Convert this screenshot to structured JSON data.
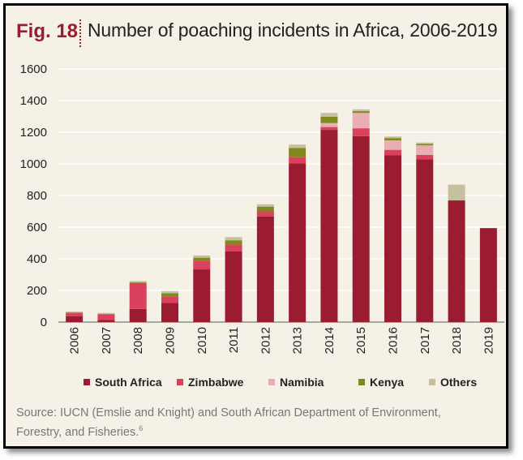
{
  "figure_label": "Fig. 18",
  "title": "Number of poaching incidents in Africa, 2006-2019",
  "source_text": "Source: IUCN (Emslie and Knight) and South African Department of Environment, Forestry, and Fisheries.",
  "source_footnote": "6",
  "colors": {
    "background": "#f6f1e7",
    "accent": "#9b1b30",
    "South Africa": "#9b1b30",
    "Zimbabwe": "#d9415c",
    "Namibia": "#e8aeb3",
    "Kenya": "#7f8a1e",
    "Others": "#c6c0a0"
  },
  "chart_data": {
    "type": "bar",
    "stacked": true,
    "title": "Number of poaching incidents in Africa, 2006-2019",
    "categories": [
      "2006",
      "2007",
      "2008",
      "2009",
      "2010",
      "2011",
      "2012",
      "2013",
      "2014",
      "2015",
      "2016",
      "2017",
      "2018",
      "2019"
    ],
    "series": [
      {
        "name": "South Africa",
        "values": [
          36,
          13,
          83,
          122,
          333,
          448,
          668,
          1004,
          1215,
          1175,
          1054,
          1028,
          769,
          594
        ]
      },
      {
        "name": "Zimbabwe",
        "values": [
          21,
          35,
          164,
          39,
          52,
          42,
          32,
          38,
          18,
          50,
          35,
          29,
          0,
          0
        ]
      },
      {
        "name": "Namibia",
        "values": [
          0,
          0,
          0,
          0,
          0,
          0,
          0,
          0,
          25,
          97,
          60,
          60,
          0,
          0
        ]
      },
      {
        "name": "Kenya",
        "values": [
          4,
          4,
          4,
          21,
          22,
          27,
          30,
          59,
          40,
          11,
          14,
          9,
          0,
          0
        ]
      },
      {
        "name": "Others",
        "values": [
          6,
          6,
          8,
          14,
          14,
          20,
          15,
          21,
          24,
          12,
          10,
          9,
          100,
          0
        ]
      }
    ],
    "ylim": [
      0,
      1600
    ],
    "yticks": [
      "0",
      "200",
      "400",
      "600",
      "800",
      "1000",
      "1200",
      "1400",
      "1600"
    ],
    "grid": true,
    "legend_position": "bottom"
  }
}
